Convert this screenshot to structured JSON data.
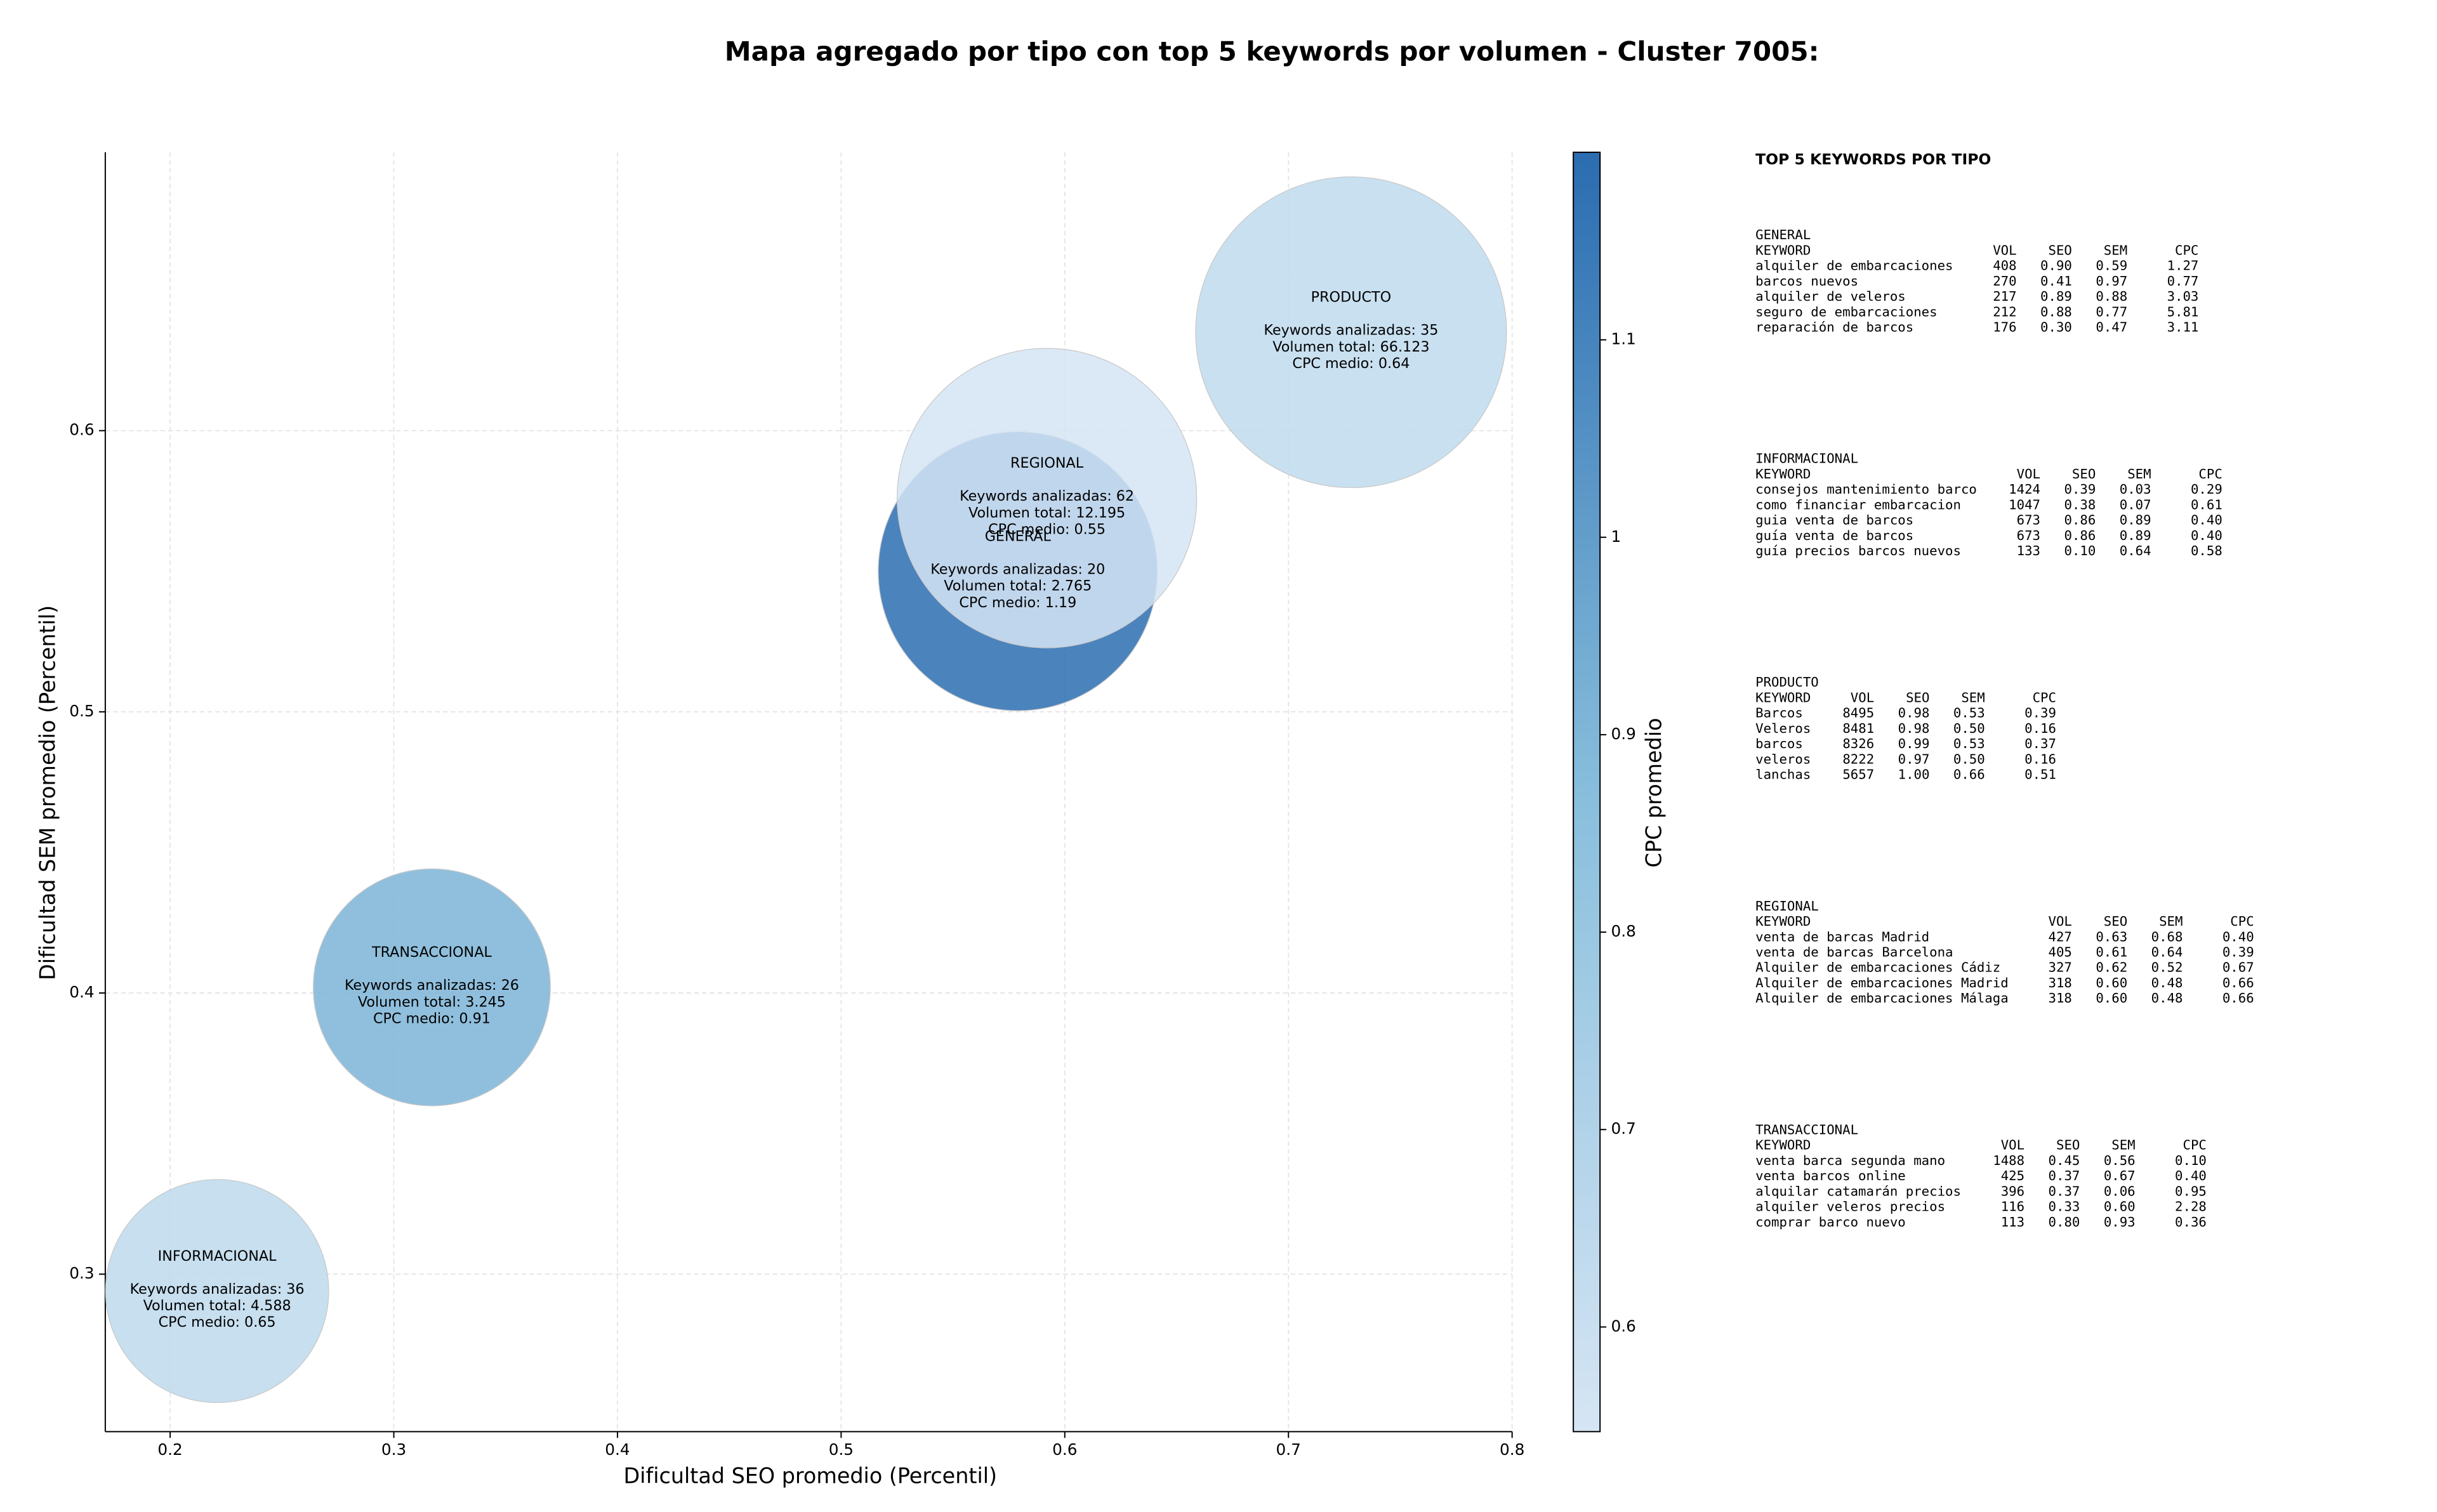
{
  "chart_data": {
    "type": "bubble",
    "title": "Mapa agregado por tipo con top 5 keywords por volumen - Cluster 7005:",
    "xlabel": "Dificultad SEO promedio (Percentil)",
    "ylabel": "Dificultad SEM promedio (Percentil)",
    "xlim": [
      0.171,
      0.8
    ],
    "ylim": [
      0.244,
      0.699
    ],
    "xticks": [
      0.2,
      0.3,
      0.4,
      0.5,
      0.6,
      0.7,
      0.8
    ],
    "yticks": [
      0.3,
      0.4,
      0.5,
      0.6
    ],
    "grid": true,
    "points": [
      {
        "name": "GENERAL",
        "x": 0.579,
        "y": 0.55,
        "size": 7900,
        "cpc": 1.19,
        "annotation": [
          "Keywords analizadas: 20",
          "Volumen total: 2.765",
          "CPC medio: 1.19"
        ]
      },
      {
        "name": "INFORMACIONAL",
        "x": 0.221,
        "y": 0.294,
        "size": 5050,
        "cpc": 0.65,
        "annotation": [
          "Keywords analizadas: 36",
          "Volumen total: 4.588",
          "CPC medio: 0.65"
        ]
      },
      {
        "name": "PRODUCTO",
        "x": 0.728,
        "y": 0.635,
        "size": 9800,
        "cpc": 0.64,
        "annotation": [
          "Keywords analizadas: 35",
          "Volumen total: 66.123",
          "CPC medio: 0.64"
        ]
      },
      {
        "name": "REGIONAL",
        "x": 0.592,
        "y": 0.576,
        "size": 9100,
        "cpc": 0.55,
        "annotation": [
          "Keywords analizadas: 62",
          "Volumen total: 12.195",
          "CPC medio: 0.55"
        ]
      },
      {
        "name": "TRANSACCIONAL",
        "x": 0.317,
        "y": 0.402,
        "size": 5700,
        "cpc": 0.91,
        "annotation": [
          "Keywords analizadas: 26",
          "Volumen total: 3.245",
          "CPC medio: 0.91"
        ]
      }
    ],
    "colorbar": {
      "label": "CPC promedio",
      "lim": [
        0.547,
        1.195
      ],
      "ticks": [
        0.6,
        0.7,
        0.8,
        0.9,
        1.0,
        1.1
      ],
      "colors": [
        "#d6e5f4",
        "#88bedc",
        "#2b6cb0"
      ]
    }
  },
  "keyword_panel": {
    "title": "TOP 5 KEYWORDS POR TIPO",
    "columns": [
      "KEYWORD",
      "VOL",
      "SEO",
      "SEM",
      "CPC"
    ],
    "sections": [
      {
        "name": "GENERAL",
        "rows": [
          [
            "alquiler de embarcaciones",
            "408",
            "0.90",
            "0.59",
            "1.27"
          ],
          [
            "barcos nuevos",
            "270",
            "0.41",
            "0.97",
            "0.77"
          ],
          [
            "alquiler de veleros",
            "217",
            "0.89",
            "0.88",
            "3.03"
          ],
          [
            "seguro de embarcaciones",
            "212",
            "0.88",
            "0.77",
            "5.81"
          ],
          [
            "reparación de barcos",
            "176",
            "0.30",
            "0.47",
            "3.11"
          ]
        ]
      },
      {
        "name": "INFORMACIONAL",
        "rows": [
          [
            "consejos mantenimiento barco",
            "1424",
            "0.39",
            "0.03",
            "0.29"
          ],
          [
            "como financiar embarcacion",
            "1047",
            "0.38",
            "0.07",
            "0.61"
          ],
          [
            "guia venta de barcos",
            "673",
            "0.86",
            "0.89",
            "0.40"
          ],
          [
            "guía venta de barcos",
            "673",
            "0.86",
            "0.89",
            "0.40"
          ],
          [
            "guía precios barcos nuevos",
            "133",
            "0.10",
            "0.64",
            "0.58"
          ]
        ]
      },
      {
        "name": "PRODUCTO",
        "rows": [
          [
            "Barcos",
            "8495",
            "0.98",
            "0.53",
            "0.39"
          ],
          [
            "Veleros",
            "8481",
            "0.98",
            "0.50",
            "0.16"
          ],
          [
            "barcos",
            "8326",
            "0.99",
            "0.53",
            "0.37"
          ],
          [
            "veleros",
            "8222",
            "0.97",
            "0.50",
            "0.16"
          ],
          [
            "lanchas",
            "5657",
            "1.00",
            "0.66",
            "0.51"
          ]
        ]
      },
      {
        "name": "REGIONAL",
        "rows": [
          [
            "venta de barcas Madrid",
            "427",
            "0.63",
            "0.68",
            "0.40"
          ],
          [
            "venta de barcas Barcelona",
            "405",
            "0.61",
            "0.64",
            "0.39"
          ],
          [
            "Alquiler de embarcaciones Cádiz",
            "327",
            "0.62",
            "0.52",
            "0.67"
          ],
          [
            "Alquiler de embarcaciones Madrid",
            "318",
            "0.60",
            "0.48",
            "0.66"
          ],
          [
            "Alquiler de embarcaciones Málaga",
            "318",
            "0.60",
            "0.48",
            "0.66"
          ]
        ]
      },
      {
        "name": "TRANSACCIONAL",
        "rows": [
          [
            "venta barca segunda mano",
            "1488",
            "0.45",
            "0.56",
            "0.10"
          ],
          [
            "venta barcos online",
            "425",
            "0.37",
            "0.67",
            "0.40"
          ],
          [
            "alquilar catamarán precios",
            "396",
            "0.37",
            "0.06",
            "0.95"
          ],
          [
            "alquiler veleros precios",
            "116",
            "0.33",
            "0.60",
            "2.28"
          ],
          [
            "comprar barco nuevo",
            "113",
            "0.80",
            "0.93",
            "0.36"
          ]
        ]
      }
    ]
  }
}
